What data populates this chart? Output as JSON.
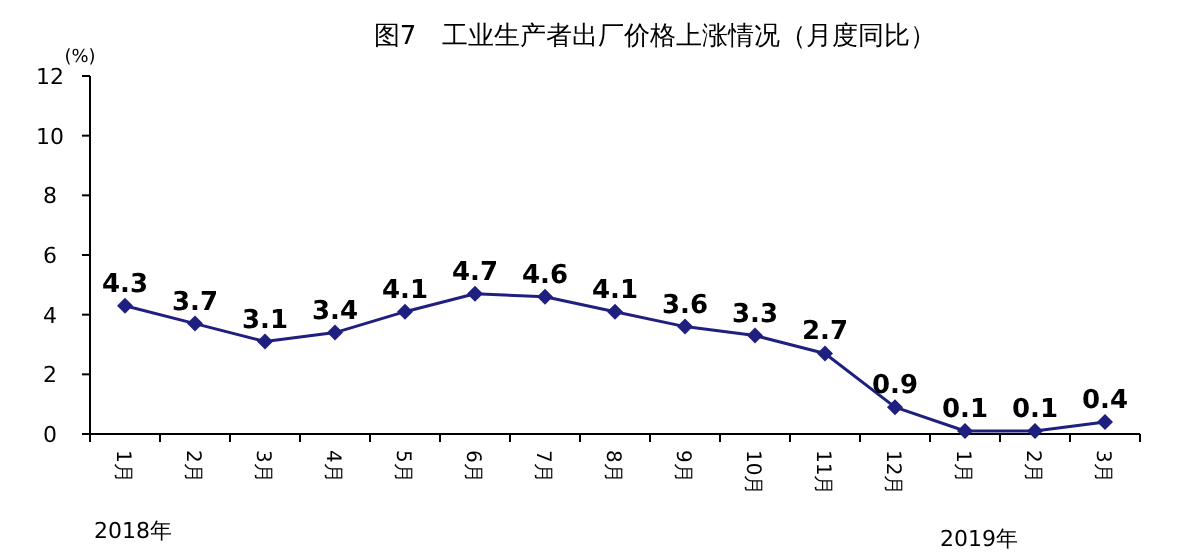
{
  "chart_data": {
    "type": "line",
    "title": "图7　工业生产者出厂价格上涨情况（月度同比）",
    "ylabel": "(%)",
    "categories": [
      "1月",
      "2月",
      "3月",
      "4月",
      "5月",
      "6月",
      "7月",
      "8月",
      "9月",
      "10月",
      "11月",
      "12月",
      "1月",
      "2月",
      "3月"
    ],
    "values": [
      4.3,
      3.7,
      3.1,
      3.4,
      4.1,
      4.7,
      4.6,
      4.1,
      3.6,
      3.3,
      2.7,
      0.9,
      0.1,
      0.1,
      0.4
    ],
    "color": "#1f1f80",
    "marker": "diamond",
    "data_labels": true,
    "ylim": [
      0,
      12
    ],
    "yticks": [
      0,
      2,
      4,
      6,
      8,
      10,
      12
    ],
    "annotations": [
      "2018年",
      "2019年"
    ]
  }
}
